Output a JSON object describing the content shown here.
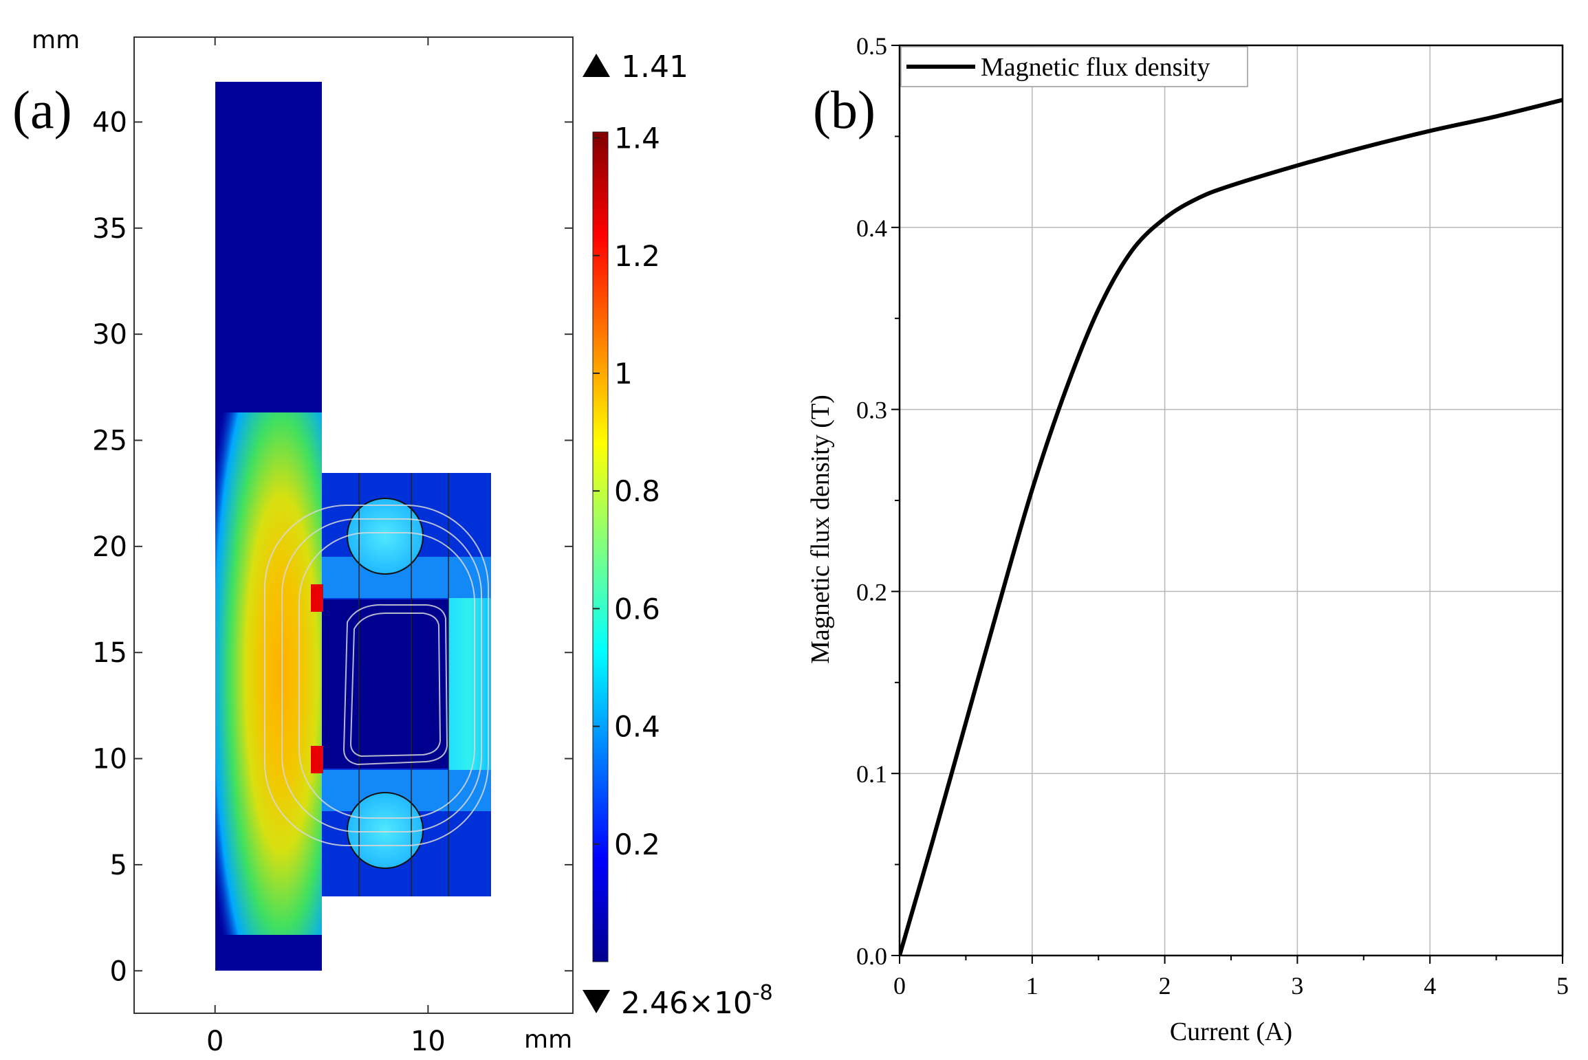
{
  "panel_a": {
    "label": "(a)",
    "x_unit": "mm",
    "y_unit": "mm",
    "x_ticks": [
      0,
      10
    ],
    "y_ticks": [
      0,
      5,
      10,
      15,
      20,
      25,
      30,
      35,
      40
    ],
    "x_range": [
      -3.8,
      16.8
    ],
    "y_range": [
      -2,
      44
    ],
    "colorbar": {
      "max_label": "1.41",
      "min_label": "2.46×10",
      "min_exponent": "-8",
      "ticks": [
        "0.2",
        "0.4",
        "0.6",
        "0.8",
        "1",
        "1.2",
        "1.4"
      ],
      "tick_values": [
        0.2,
        0.4,
        0.6,
        0.8,
        1.0,
        1.2,
        1.4
      ],
      "range": [
        0,
        1.41
      ]
    }
  },
  "chart_data": [
    {
      "type": "heatmap",
      "title": "",
      "description_label": "(a)",
      "xlabel": "mm",
      "ylabel": "mm",
      "xlim": [
        -3.8,
        16.8
      ],
      "ylim": [
        -2,
        44
      ],
      "colorbar_max": 1.41,
      "colorbar_min": 2.46e-08
    },
    {
      "type": "line",
      "title": "",
      "panel_label": "(b)",
      "xlabel": "Current (A)",
      "ylabel": "Magnetic flux density (T)",
      "xlim": [
        0,
        5
      ],
      "ylim": [
        0,
        0.5
      ],
      "x_ticks": [
        "0",
        "1",
        "2",
        "3",
        "4",
        "5"
      ],
      "y_ticks": [
        "0.0",
        "0.1",
        "0.2",
        "0.3",
        "0.4",
        "0.5"
      ],
      "grid": true,
      "legend_position": "top-left",
      "series": [
        {
          "name": "Magnetic flux density",
          "x": [
            0,
            0.25,
            0.5,
            0.75,
            1.0,
            1.25,
            1.5,
            1.75,
            2.0,
            2.25,
            2.5,
            3.0,
            3.5,
            4.0,
            4.5,
            5.0
          ],
          "y": [
            0,
            0.063,
            0.128,
            0.193,
            0.256,
            0.31,
            0.355,
            0.387,
            0.405,
            0.416,
            0.423,
            0.434,
            0.444,
            0.453,
            0.461,
            0.47
          ]
        }
      ]
    }
  ]
}
